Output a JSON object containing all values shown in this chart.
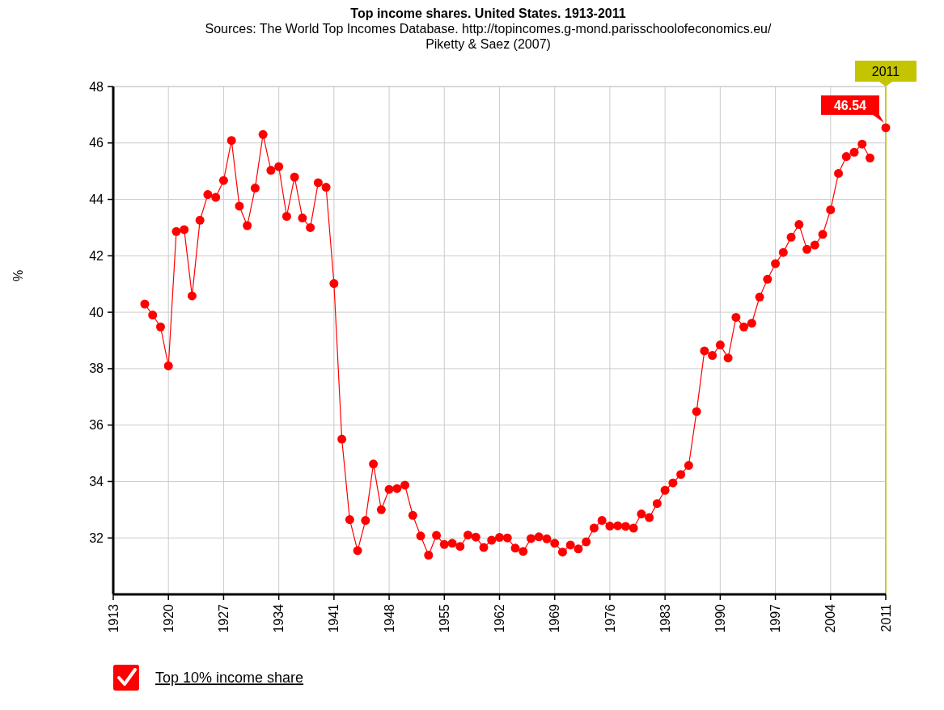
{
  "chart_data": {
    "type": "line",
    "title": "Top income shares. United States. 1913-2011",
    "subtitle": "Sources: The World Top Incomes Database. http://topincomes.g-mond.parisschoolofeconomics.eu/\nPiketty & Saez (2007)",
    "ylabel": "%",
    "x": [
      1917,
      1918,
      1919,
      1920,
      1921,
      1922,
      1923,
      1924,
      1925,
      1926,
      1927,
      1928,
      1929,
      1930,
      1931,
      1932,
      1933,
      1934,
      1935,
      1936,
      1937,
      1938,
      1939,
      1940,
      1941,
      1942,
      1943,
      1944,
      1945,
      1946,
      1947,
      1948,
      1949,
      1950,
      1951,
      1952,
      1953,
      1954,
      1955,
      1956,
      1957,
      1958,
      1959,
      1960,
      1961,
      1962,
      1963,
      1964,
      1965,
      1966,
      1967,
      1968,
      1969,
      1970,
      1971,
      1972,
      1973,
      1974,
      1975,
      1976,
      1977,
      1978,
      1979,
      1980,
      1981,
      1982,
      1983,
      1984,
      1985,
      1986,
      1987,
      1988,
      1989,
      1990,
      1991,
      1992,
      1993,
      1994,
      1995,
      1996,
      1997,
      1998,
      1999,
      2000,
      2001,
      2002,
      2003,
      2004,
      2005,
      2006,
      2007,
      2008,
      2009,
      2010,
      2011
    ],
    "series": [
      {
        "name": "Top 10% income share",
        "color": "#ff0000",
        "values": [
          40.29,
          39.9,
          39.48,
          38.1,
          42.86,
          42.93,
          40.58,
          43.26,
          44.17,
          44.07,
          44.67,
          46.09,
          43.76,
          43.07,
          44.4,
          46.3,
          45.03,
          45.16,
          43.4,
          44.79,
          43.34,
          43.0,
          44.59,
          44.43,
          41.02,
          35.5,
          32.65,
          31.55,
          32.62,
          34.62,
          33.0,
          33.72,
          33.75,
          33.87,
          32.8,
          32.07,
          31.39,
          32.09,
          31.77,
          31.81,
          31.7,
          32.1,
          32.03,
          31.66,
          31.92,
          32.02,
          32.0,
          31.64,
          31.52,
          31.98,
          32.04,
          31.97,
          31.81,
          31.5,
          31.75,
          31.61,
          31.86,
          32.35,
          32.62,
          32.42,
          32.43,
          32.41,
          32.35,
          32.85,
          32.72,
          33.22,
          33.69,
          33.95,
          34.25,
          34.57,
          36.48,
          38.63,
          38.47,
          38.84,
          38.38,
          39.82,
          39.48,
          39.61,
          40.54,
          41.17,
          41.72,
          42.12,
          42.66,
          43.11,
          42.23,
          42.38,
          42.76,
          43.63,
          44.92,
          45.52,
          45.67,
          45.96,
          45.47,
          null,
          46.54
        ]
      }
    ],
    "xlim": [
      1913,
      2011
    ],
    "xticks": [
      1913,
      1920,
      1927,
      1934,
      1941,
      1948,
      1955,
      1962,
      1969,
      1976,
      1983,
      1990,
      1997,
      2004,
      2011
    ],
    "ylim": [
      30,
      48
    ],
    "yticks": [
      32,
      34,
      36,
      38,
      40,
      42,
      44,
      46,
      48
    ],
    "annotations": [
      {
        "text": "46.54",
        "x": 2011,
        "y": 46.54
      }
    ],
    "ref_lines": [
      {
        "axis": "x",
        "value": 2011,
        "label": "2011",
        "color": "#c4c400"
      }
    ],
    "grid": true,
    "legend": "bottom left",
    "marker": "circle",
    "line_style": "solid"
  }
}
